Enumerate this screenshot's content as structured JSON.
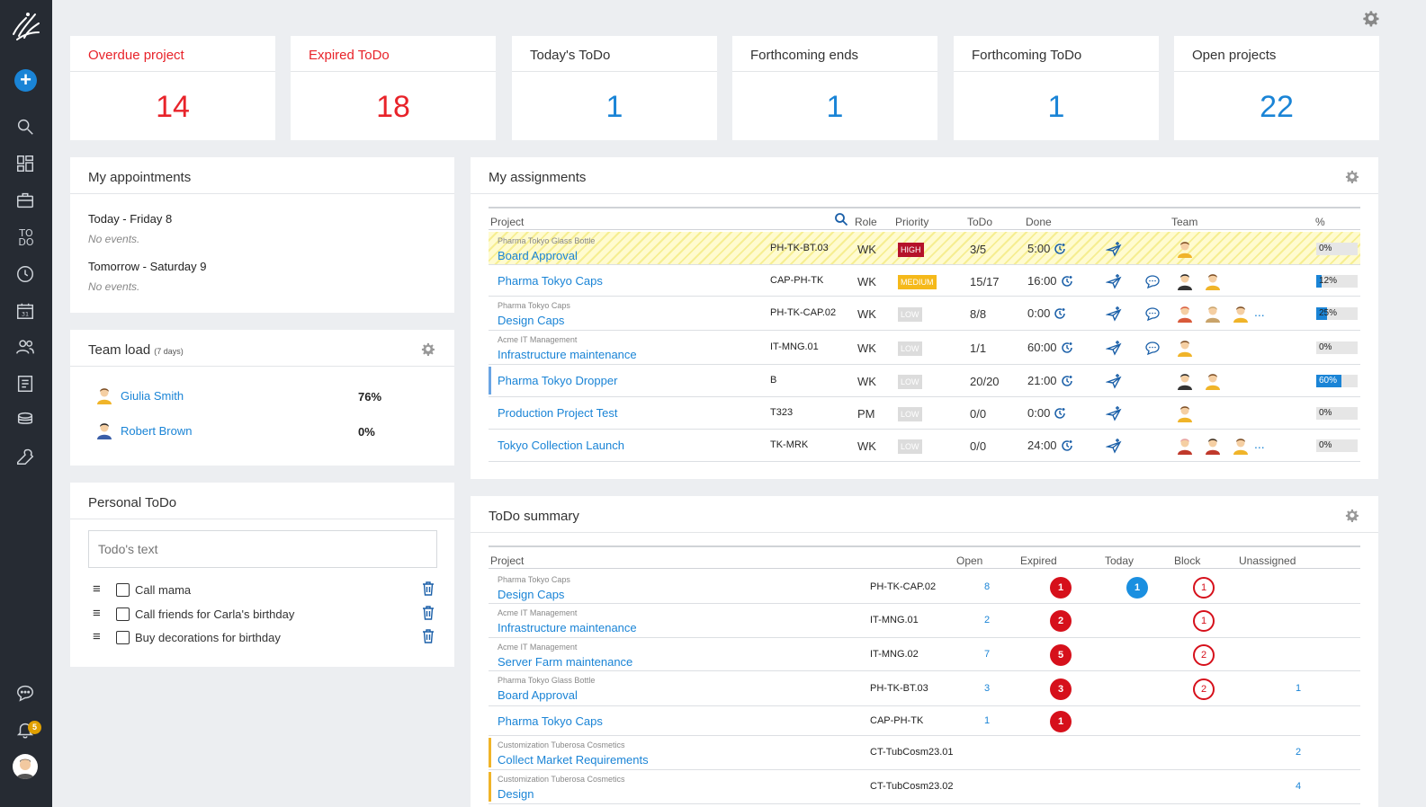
{
  "sidebar": {
    "items": [
      {
        "icon": "search-icon"
      },
      {
        "icon": "dashboard-icon"
      },
      {
        "icon": "briefcase-icon"
      },
      {
        "icon": "todo-icon",
        "label": "TO DO"
      },
      {
        "icon": "clock-icon"
      },
      {
        "icon": "calendar-icon",
        "label": "31"
      },
      {
        "icon": "people-icon"
      },
      {
        "icon": "document-icon"
      },
      {
        "icon": "coins-icon"
      },
      {
        "icon": "wrench-icon"
      }
    ],
    "notifications_count": "5"
  },
  "kpis": [
    {
      "title": "Overdue project",
      "value": "14",
      "color": "#e8232a"
    },
    {
      "title": "Expired ToDo",
      "value": "18",
      "color": "#e8232a"
    },
    {
      "title": "Today's ToDo",
      "value": "1",
      "color": "#1a84d6"
    },
    {
      "title": "Forthcoming ends",
      "value": "1",
      "color": "#1a84d6"
    },
    {
      "title": "Forthcoming ToDo",
      "value": "1",
      "color": "#1a84d6"
    },
    {
      "title": "Open projects",
      "value": "22",
      "color": "#1a84d6"
    }
  ],
  "appointments": {
    "title": "My appointments",
    "days": [
      {
        "label": "Today - Friday 8",
        "events": "No events."
      },
      {
        "label": "Tomorrow - Saturday 9",
        "events": "No events."
      }
    ]
  },
  "team_load": {
    "title": "Team load",
    "subtitle": "(7 days)",
    "members": [
      {
        "name": "Giulia Smith",
        "load": "76%"
      },
      {
        "name": "Robert Brown",
        "load": "0%"
      }
    ]
  },
  "personal_todo": {
    "title": "Personal ToDo",
    "placeholder": "Todo's text",
    "items": [
      "Call mama",
      "Call friends for Carla's birthday",
      "Buy decorations for birthday"
    ]
  },
  "assignments": {
    "title": "My assignments",
    "columns": [
      "Project",
      "Role",
      "Priority",
      "ToDo",
      "Done",
      "Team",
      "%"
    ],
    "rows": [
      {
        "client": "Pharma Tokyo Glass Bottle",
        "project": "Board Approval",
        "code": "PH-TK-BT.03",
        "role": "WK",
        "priority": "HIGH",
        "todo": "3/5",
        "done": "5:00",
        "percent": "0%",
        "percent_value": 0
      },
      {
        "client": "",
        "project": "Pharma Tokyo Caps",
        "code": "CAP-PH-TK",
        "role": "WK",
        "priority": "MEDIUM",
        "todo": "15/17",
        "done": "16:00",
        "percent": "12%",
        "percent_value": 12
      },
      {
        "client": "Pharma Tokyo Caps",
        "project": "Design Caps",
        "code": "PH-TK-CAP.02",
        "role": "WK",
        "priority": "LOW",
        "todo": "8/8",
        "done": "0:00",
        "percent": "25%",
        "percent_value": 25
      },
      {
        "client": "Acme IT Management",
        "project": "Infrastructure maintenance",
        "code": "IT-MNG.01",
        "role": "WK",
        "priority": "LOW",
        "todo": "1/1",
        "done": "60:00",
        "percent": "0%",
        "percent_value": 0
      },
      {
        "client": "",
        "project": "Pharma Tokyo Dropper",
        "code": "B",
        "role": "WK",
        "priority": "LOW",
        "todo": "20/20",
        "done": "21:00",
        "percent": "60%",
        "percent_value": 60
      },
      {
        "client": "",
        "project": "Production Project Test",
        "code": "T323",
        "role": "PM",
        "priority": "LOW",
        "todo": "0/0",
        "done": "0:00",
        "percent": "0%",
        "percent_value": 0
      },
      {
        "client": "",
        "project": "Tokyo Collection Launch",
        "code": "TK-MRK",
        "role": "WK",
        "priority": "LOW",
        "todo": "0/0",
        "done": "24:00",
        "percent": "0%",
        "percent_value": 0
      }
    ],
    "more": "..."
  },
  "todo_summary": {
    "title": "ToDo summary",
    "columns": [
      "Project",
      "Open",
      "Expired",
      "Today",
      "Block",
      "Unassigned"
    ],
    "rows": [
      {
        "client": "Pharma Tokyo Caps",
        "project": "Design Caps",
        "code": "PH-TK-CAP.02",
        "open": "8",
        "expired": "1",
        "today": "1",
        "block": "1",
        "unassigned": ""
      },
      {
        "client": "Acme IT Management",
        "project": "Infrastructure maintenance",
        "code": "IT-MNG.01",
        "open": "2",
        "expired": "2",
        "today": "",
        "block": "1",
        "unassigned": ""
      },
      {
        "client": "Acme IT Management",
        "project": "Server Farm maintenance",
        "code": "IT-MNG.02",
        "open": "7",
        "expired": "5",
        "today": "",
        "block": "2",
        "unassigned": ""
      },
      {
        "client": "Pharma Tokyo Glass Bottle",
        "project": "Board Approval",
        "code": "PH-TK-BT.03",
        "open": "3",
        "expired": "3",
        "today": "",
        "block": "2",
        "unassigned": "1"
      },
      {
        "client": "",
        "project": "Pharma Tokyo Caps",
        "code": "CAP-PH-TK",
        "open": "1",
        "expired": "1",
        "today": "",
        "block": "",
        "unassigned": ""
      },
      {
        "client": "Customization Tuberosa Cosmetics",
        "project": "Collect Market Requirements",
        "code": "CT-TubCosm23.01",
        "open": "",
        "expired": "",
        "today": "",
        "block": "",
        "unassigned": "2"
      },
      {
        "client": "Customization Tuberosa Cosmetics",
        "project": "Design",
        "code": "CT-TubCosm23.02",
        "open": "",
        "expired": "",
        "today": "",
        "block": "",
        "unassigned": "4"
      }
    ]
  }
}
